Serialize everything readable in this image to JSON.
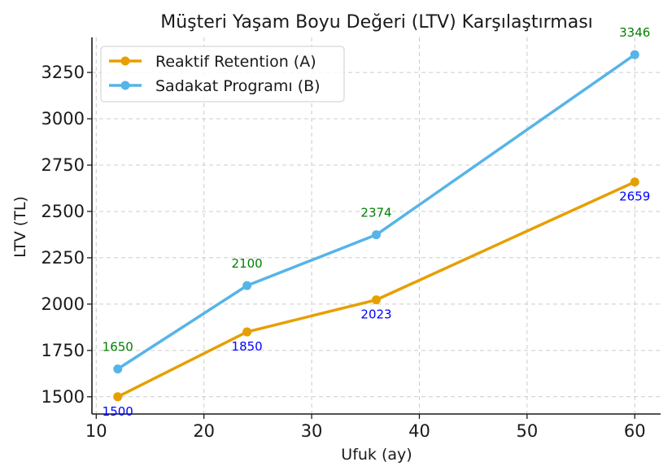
{
  "chart_data": {
    "type": "line",
    "title": "Müşteri Yaşam Boyu Değeri (LTV) Karşılaştırması",
    "xlabel": "Ufuk (ay)",
    "ylabel": "LTV (TL)",
    "x": [
      12,
      24,
      36,
      60
    ],
    "xlim": [
      9.6,
      62.4
    ],
    "ylim": [
      1407,
      3439
    ],
    "xticks": [
      10,
      20,
      30,
      40,
      50,
      60
    ],
    "yticks": [
      1500,
      1750,
      2000,
      2250,
      2500,
      2750,
      3000,
      3250
    ],
    "grid": true,
    "legend_position": "top-left",
    "series": [
      {
        "name": "Reaktif Retention (A)",
        "values": [
          1500,
          1850,
          2023,
          2659
        ],
        "color": "#E69F00",
        "label_color": "#0000ff",
        "label_position": "below"
      },
      {
        "name": "Sadakat Programı (B)",
        "values": [
          1650,
          2100,
          2374,
          3346
        ],
        "color": "#56B4E9",
        "label_color": "#008000",
        "label_position": "above"
      }
    ]
  }
}
